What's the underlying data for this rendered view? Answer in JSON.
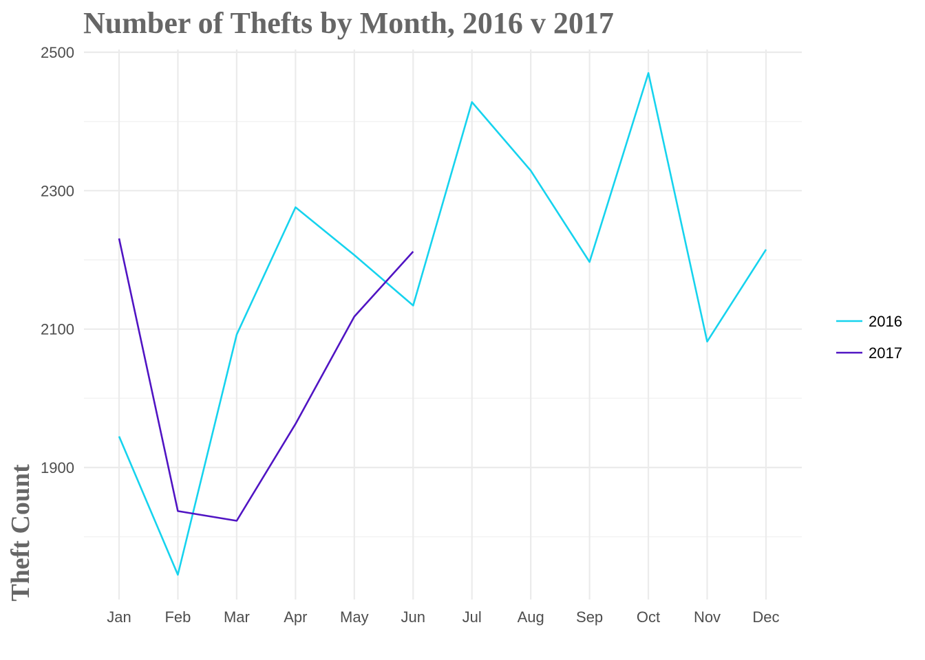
{
  "chart_data": {
    "type": "line",
    "title": "Number of Thefts by Month, 2016 v 2017",
    "xlabel": "",
    "ylabel": "Theft Count",
    "categories": [
      "Jan",
      "Feb",
      "Mar",
      "Apr",
      "May",
      "Jun",
      "Jul",
      "Aug",
      "Sep",
      "Oct",
      "Nov",
      "Dec"
    ],
    "yticks": [
      1900,
      2100,
      2300,
      2500
    ],
    "yminor": [
      1800,
      2000,
      2200,
      2400
    ],
    "ylim": [
      1710,
      2560
    ],
    "grid": true,
    "legend_position": "right",
    "series": [
      {
        "name": "2016",
        "color": "#16d3ee",
        "values": [
          1945,
          1745,
          2092,
          2276,
          2207,
          2134,
          2428,
          2329,
          2197,
          2470,
          2082,
          2215
        ]
      },
      {
        "name": "2017",
        "color": "#5014c3",
        "values": [
          2231,
          1837,
          1823,
          1963,
          2118,
          2212,
          null,
          null,
          null,
          null,
          null,
          null
        ]
      }
    ]
  }
}
